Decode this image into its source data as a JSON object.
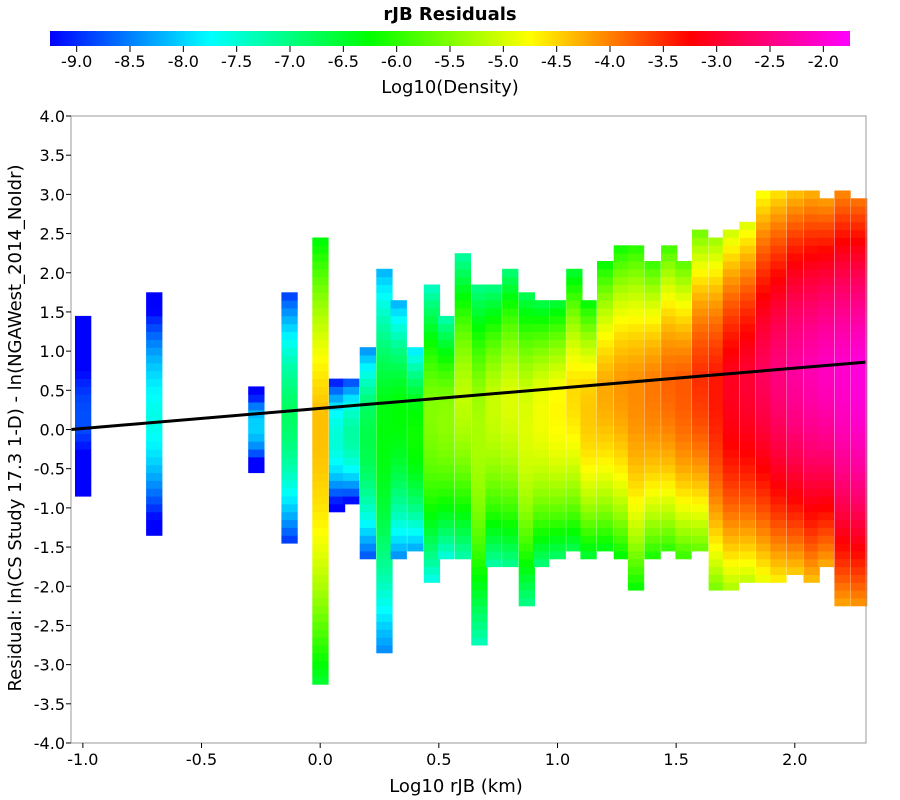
{
  "chart_data": {
    "type": "heatmap",
    "title": "rJB Residuals",
    "xlabel": "Log10 rJB (km)",
    "ylabel": "Residual: ln(CS Study 17.3 1-D) - ln(NGAWest_2014_NoIdr)",
    "xlim": [
      -1.05,
      2.3
    ],
    "ylim": [
      -4.0,
      4.0
    ],
    "x_ticks": [
      "-1.0",
      "-0.5",
      "0.0",
      "0.5",
      "1.0",
      "1.5",
      "2.0"
    ],
    "y_ticks": [
      "4.0",
      "3.5",
      "3.0",
      "2.5",
      "2.0",
      "1.5",
      "1.0",
      "0.5",
      "0.0",
      "-0.5",
      "-1.0",
      "-1.5",
      "-2.0",
      "-2.5",
      "-3.0",
      "-3.5",
      "-4.0"
    ],
    "grid": false,
    "colorbar": {
      "label": "Log10(Density)",
      "range": [
        -9.25,
        -1.75
      ],
      "tick_labels": [
        "-9.0",
        "-8.5",
        "-8.0",
        "-7.5",
        "-7.0",
        "-6.5",
        "-6.0",
        "-5.5",
        "-5.0",
        "-4.5",
        "-4.0",
        "-3.5",
        "-3.0",
        "-2.5",
        "-2.0"
      ],
      "colors": [
        "#0000ff",
        "#00ffff",
        "#00ff00",
        "#ffff00",
        "#ff0000",
        "#ff00ff"
      ]
    },
    "bin_width_x": 0.0667,
    "bin_height_y": 0.1,
    "trend_line": {
      "x": [
        -1.05,
        2.3
      ],
      "y": [
        0.0,
        0.86
      ],
      "color": "#000000"
    },
    "density_columns": [
      {
        "x": -1.0,
        "y_min": -0.8,
        "y_max": 1.4,
        "level": -8.7
      },
      {
        "x": -0.7,
        "y_min": -1.3,
        "y_max": 1.7,
        "level": -7.6
      },
      {
        "x": -0.27,
        "y_min": -0.5,
        "y_max": 0.5,
        "level": -7.9
      },
      {
        "x": -0.13,
        "y_min": -1.4,
        "y_max": 1.7,
        "level": -6.8
      },
      {
        "x": 0.0,
        "y_min": -3.2,
        "y_max": 2.4,
        "level": -4.3
      },
      {
        "x": 0.07,
        "y_min": -1.0,
        "y_max": 0.6,
        "level": -7.3
      },
      {
        "x": 0.13,
        "y_min": -0.9,
        "y_max": 0.6,
        "level": -7.0
      },
      {
        "x": 0.2,
        "y_min": -1.6,
        "y_max": 1.0,
        "level": -6.5
      },
      {
        "x": 0.27,
        "y_min": -2.8,
        "y_max": 2.0,
        "level": -6.2
      },
      {
        "x": 0.33,
        "y_min": -1.6,
        "y_max": 1.6,
        "level": -6.2
      },
      {
        "x": 0.4,
        "y_min": -1.5,
        "y_max": 1.0,
        "level": -6.0
      },
      {
        "x": 0.47,
        "y_min": -1.9,
        "y_max": 1.8,
        "level": -5.4
      },
      {
        "x": 0.53,
        "y_min": -1.6,
        "y_max": 1.4,
        "level": -5.3
      },
      {
        "x": 0.6,
        "y_min": -1.6,
        "y_max": 2.2,
        "level": -5.1
      },
      {
        "x": 0.67,
        "y_min": -2.7,
        "y_max": 1.8,
        "level": -5.1
      },
      {
        "x": 0.73,
        "y_min": -1.7,
        "y_max": 1.8,
        "level": -5.0
      },
      {
        "x": 0.8,
        "y_min": -1.7,
        "y_max": 2.0,
        "level": -4.9
      },
      {
        "x": 0.87,
        "y_min": -2.2,
        "y_max": 1.7,
        "level": -4.8
      },
      {
        "x": 0.93,
        "y_min": -1.7,
        "y_max": 1.6,
        "level": -4.7
      },
      {
        "x": 1.0,
        "y_min": -1.6,
        "y_max": 1.6,
        "level": -4.6
      },
      {
        "x": 1.07,
        "y_min": -1.5,
        "y_max": 2.0,
        "level": -4.5
      },
      {
        "x": 1.13,
        "y_min": -1.6,
        "y_max": 1.6,
        "level": -4.3
      },
      {
        "x": 1.2,
        "y_min": -1.5,
        "y_max": 2.1,
        "level": -4.2
      },
      {
        "x": 1.27,
        "y_min": -1.6,
        "y_max": 2.3,
        "level": -4.1
      },
      {
        "x": 1.33,
        "y_min": -2.0,
        "y_max": 2.3,
        "level": -4.0
      },
      {
        "x": 1.4,
        "y_min": -1.6,
        "y_max": 2.1,
        "level": -3.9
      },
      {
        "x": 1.47,
        "y_min": -1.5,
        "y_max": 2.3,
        "level": -3.8
      },
      {
        "x": 1.53,
        "y_min": -1.6,
        "y_max": 2.1,
        "level": -3.7
      },
      {
        "x": 1.6,
        "y_min": -1.5,
        "y_max": 2.5,
        "level": -3.5
      },
      {
        "x": 1.67,
        "y_min": -2.0,
        "y_max": 2.4,
        "level": -3.3
      },
      {
        "x": 1.73,
        "y_min": -2.0,
        "y_max": 2.5,
        "level": -3.0
      },
      {
        "x": 1.8,
        "y_min": -1.9,
        "y_max": 2.6,
        "level": -2.9
      },
      {
        "x": 1.87,
        "y_min": -1.9,
        "y_max": 3.0,
        "level": -2.7
      },
      {
        "x": 1.93,
        "y_min": -1.9,
        "y_max": 3.0,
        "level": -2.5
      },
      {
        "x": 2.0,
        "y_min": -1.8,
        "y_max": 3.0,
        "level": -2.3
      },
      {
        "x": 2.07,
        "y_min": -1.9,
        "y_max": 3.0,
        "level": -2.2
      },
      {
        "x": 2.13,
        "y_min": -1.7,
        "y_max": 2.9,
        "level": -2.1
      },
      {
        "x": 2.2,
        "y_min": -2.2,
        "y_max": 3.0,
        "level": -2.0
      },
      {
        "x": 2.27,
        "y_min": -2.2,
        "y_max": 2.9,
        "level": -1.9
      }
    ]
  }
}
